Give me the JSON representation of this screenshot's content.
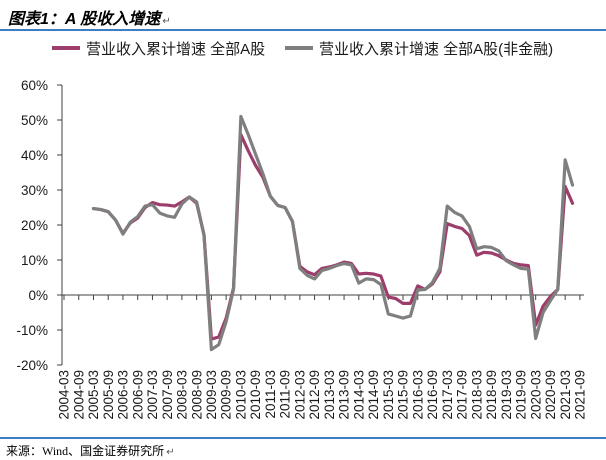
{
  "header": {
    "title": "图表1：A 股收入增速",
    "mark": "↵"
  },
  "footer": {
    "source": "来源：Wind、国金证券研究所",
    "mark": "↵"
  },
  "colors": {
    "rule": "#3C7DC4",
    "axis": "#404040"
  },
  "chart_data": {
    "type": "line",
    "grid": false,
    "legend": "top",
    "ylim": [
      -20,
      60
    ],
    "yticks": [
      -20,
      -10,
      0,
      10,
      20,
      30,
      40,
      50,
      60
    ],
    "ytick_labels": [
      "-20%",
      "-10%",
      "0%",
      "10%",
      "20%",
      "30%",
      "40%",
      "50%",
      "60%"
    ],
    "x": [
      "2004-03",
      "2004-06",
      "2004-09",
      "2004-12",
      "2005-03",
      "2005-06",
      "2005-09",
      "2005-12",
      "2006-03",
      "2006-06",
      "2006-09",
      "2006-12",
      "2007-03",
      "2007-06",
      "2007-09",
      "2007-12",
      "2008-03",
      "2008-06",
      "2008-09",
      "2008-12",
      "2009-03",
      "2009-06",
      "2009-09",
      "2009-12",
      "2010-03",
      "2010-06",
      "2010-09",
      "2010-12",
      "2011-03",
      "2011-06",
      "2011-09",
      "2011-12",
      "2012-03",
      "2012-06",
      "2012-09",
      "2012-12",
      "2013-03",
      "2013-06",
      "2013-09",
      "2013-12",
      "2014-03",
      "2014-06",
      "2014-09",
      "2014-12",
      "2015-03",
      "2015-06",
      "2015-09",
      "2015-12",
      "2016-03",
      "2016-06",
      "2016-09",
      "2016-12",
      "2017-03",
      "2017-06",
      "2017-09",
      "2017-12",
      "2018-03",
      "2018-06",
      "2018-09",
      "2018-12",
      "2019-03",
      "2019-06",
      "2019-09",
      "2019-12",
      "2020-03",
      "2020-06",
      "2020-09",
      "2020-12",
      "2021-03",
      "2021-06",
      "2021-09"
    ],
    "xtick_labels": [
      "2004-03",
      "2004-09",
      "2005-03",
      "2005-09",
      "2006-03",
      "2006-09",
      "2007-03",
      "2007-09",
      "2008-03",
      "2008-09",
      "2009-03",
      "2009-09",
      "2010-03",
      "2010-09",
      "2011-03",
      "2011-09",
      "2012-03",
      "2012-09",
      "2013-03",
      "2013-09",
      "2014-03",
      "2014-09",
      "2015-03",
      "2015-09",
      "2016-03",
      "2016-09",
      "2017-03",
      "2017-09",
      "2018-03",
      "2018-09",
      "2019-03",
      "2019-09",
      "2020-03",
      "2020-09",
      "2021-03",
      "2021-09"
    ],
    "series": [
      {
        "name": "营业收入累计增速 全部A股",
        "color": "#9C3D6B",
        "values": [
          null,
          null,
          null,
          null,
          24.7,
          24.4,
          23.8,
          21.4,
          17.6,
          20.6,
          22.0,
          25.0,
          26.4,
          25.8,
          25.7,
          25.4,
          26.6,
          28.0,
          26.2,
          17.2,
          -12.6,
          -12.0,
          -6.6,
          2.0,
          45.8,
          41.2,
          37.0,
          33.6,
          28.2,
          25.6,
          25.0,
          21.0,
          8.2,
          6.6,
          5.8,
          7.6,
          8.0,
          8.6,
          9.4,
          9.0,
          6.0,
          6.2,
          6.0,
          5.4,
          -0.6,
          -1.0,
          -2.4,
          -2.4,
          2.6,
          1.6,
          3.2,
          6.6,
          20.4,
          19.6,
          19.0,
          17.0,
          11.4,
          12.2,
          12.0,
          11.2,
          10.0,
          9.0,
          8.6,
          8.4,
          -8.6,
          -3.2,
          -0.4,
          1.6,
          31.0,
          26.2,
          null
        ]
      },
      {
        "name": "营业收入累计增速 全部A股(非金融)",
        "color": "#7F7F7F",
        "values": [
          null,
          null,
          null,
          null,
          24.7,
          24.4,
          23.8,
          21.4,
          17.4,
          20.8,
          22.4,
          25.4,
          25.8,
          23.4,
          22.6,
          22.2,
          26.0,
          28.0,
          26.6,
          17.0,
          -15.6,
          -14.2,
          -7.6,
          1.6,
          51.0,
          45.8,
          40.2,
          34.6,
          28.2,
          25.6,
          25.0,
          21.0,
          7.6,
          5.6,
          4.6,
          7.0,
          7.6,
          8.4,
          9.0,
          8.6,
          3.4,
          4.6,
          4.4,
          3.0,
          -5.4,
          -6.0,
          -6.6,
          -6.0,
          1.4,
          1.6,
          3.6,
          7.6,
          25.4,
          23.6,
          22.6,
          19.6,
          13.2,
          13.8,
          13.6,
          12.6,
          9.8,
          8.6,
          7.6,
          7.4,
          -12.4,
          -5.0,
          -1.6,
          1.6,
          38.6,
          31.4,
          null
        ]
      }
    ]
  }
}
